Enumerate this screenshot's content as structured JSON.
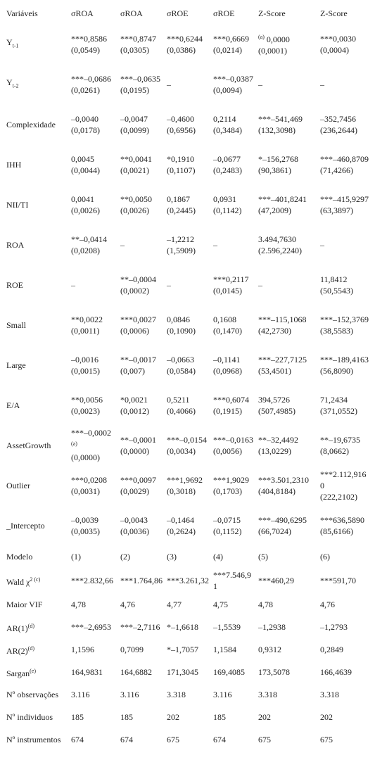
{
  "table": {
    "header": [
      "Variáveis",
      "σROA",
      "σROA",
      "σROE",
      "σROE",
      "Z-Score",
      "Z-Score"
    ],
    "rows": [
      {
        "label": {
          "text": "Y",
          "sub": "t-1"
        },
        "cells": [
          {
            "lines": [
              "***0,8586",
              "(0,0549)"
            ]
          },
          {
            "lines": [
              "***0,8747",
              "(0,0305)"
            ]
          },
          {
            "lines": [
              "***0,6244",
              "(0,0386)"
            ]
          },
          {
            "lines": [
              "***0,6669",
              "(0,0214)"
            ]
          },
          {
            "pre": "(a)",
            "lines": [
              "0,0000",
              "(0,0001)"
            ]
          },
          {
            "lines": [
              "***0,0030",
              "(0,0004)"
            ]
          }
        ]
      },
      {
        "label": {
          "text": "Y",
          "sub": "t-2"
        },
        "cells": [
          {
            "lines": [
              "***–0,0686",
              "(0,0261)"
            ]
          },
          {
            "lines": [
              "***–0,0635",
              "(0,0195)"
            ]
          },
          {
            "lines": [
              "–"
            ]
          },
          {
            "lines": [
              "***–0,0387",
              "(0,0094)"
            ]
          },
          {
            "lines": [
              "–"
            ]
          },
          {
            "lines": [
              "–"
            ]
          }
        ]
      },
      {
        "label": {
          "text": "Complexidade"
        },
        "cells": [
          {
            "lines": [
              "–0,0040",
              "(0,0178)"
            ]
          },
          {
            "lines": [
              "–0,0047",
              "(0,0099)"
            ]
          },
          {
            "lines": [
              "–0,4600",
              "(0,6956)"
            ]
          },
          {
            "lines": [
              "0,2114",
              "(0,3484)"
            ]
          },
          {
            "lines": [
              "***–541,469",
              "(132,3098)"
            ]
          },
          {
            "lines": [
              "–352,7456",
              "(236,2644)"
            ]
          }
        ]
      },
      {
        "label": {
          "text": "IHH"
        },
        "cells": [
          {
            "lines": [
              "0,0045",
              "(0,0044)"
            ]
          },
          {
            "lines": [
              "**0,0041",
              "(0,0021)"
            ]
          },
          {
            "lines": [
              "*0,1910",
              "(0,1107)"
            ]
          },
          {
            "lines": [
              "–0,0677",
              "(0,2483)"
            ]
          },
          {
            "lines": [
              "*–156,2768",
              "(90,3861)"
            ]
          },
          {
            "lines": [
              "***–460,8709",
              "(71,4266)"
            ]
          }
        ]
      },
      {
        "label": {
          "text": "NII/TI"
        },
        "cells": [
          {
            "lines": [
              "0,0041",
              "(0,0026)"
            ]
          },
          {
            "lines": [
              "**0,0050",
              "(0,0026)"
            ]
          },
          {
            "lines": [
              "0,1867",
              "(0,2445)"
            ]
          },
          {
            "lines": [
              "0,0931",
              "(0,1142)"
            ]
          },
          {
            "lines": [
              "***–401,8241",
              "(47,2009)"
            ]
          },
          {
            "lines": [
              "***–415,9297",
              "(63,3897)"
            ]
          }
        ]
      },
      {
        "label": {
          "text": "ROA"
        },
        "cells": [
          {
            "lines": [
              "**–0,0414",
              "(0,0208)"
            ]
          },
          {
            "lines": [
              "–"
            ]
          },
          {
            "lines": [
              "–1,2212",
              "(1,5909)"
            ]
          },
          {
            "lines": [
              "–"
            ]
          },
          {
            "lines": [
              "3.494,7630",
              "(2.596,2240)"
            ]
          },
          {
            "lines": [
              "–"
            ]
          }
        ]
      },
      {
        "label": {
          "text": "ROE"
        },
        "cells": [
          {
            "lines": [
              "–"
            ]
          },
          {
            "lines": [
              "**–0,0004",
              "(0,0002)"
            ]
          },
          {
            "lines": [
              "–"
            ]
          },
          {
            "lines": [
              "***0,2117",
              "(0,0145)"
            ]
          },
          {
            "lines": [
              "–"
            ]
          },
          {
            "lines": [
              "11,8412",
              "(50,5543)"
            ]
          }
        ]
      },
      {
        "label": {
          "text": "Small"
        },
        "cells": [
          {
            "lines": [
              "**0,0022",
              "(0,0011)"
            ]
          },
          {
            "lines": [
              "***0,0027",
              "(0,0006)"
            ]
          },
          {
            "lines": [
              "0,0846",
              "(0,1090)"
            ]
          },
          {
            "lines": [
              "0,1608",
              "(0,1470)"
            ]
          },
          {
            "lines": [
              "***–115,1068",
              "(42,2730)"
            ]
          },
          {
            "lines": [
              "***–152,3769",
              "(38,5583)"
            ]
          }
        ]
      },
      {
        "label": {
          "text": "Large"
        },
        "cells": [
          {
            "lines": [
              "–0,0016",
              "(0,0015)"
            ]
          },
          {
            "lines": [
              "**–0,0017",
              "(0,007)"
            ]
          },
          {
            "lines": [
              "–0,0663",
              "(0,0584)"
            ]
          },
          {
            "lines": [
              "–0,1141",
              "(0,0968)"
            ]
          },
          {
            "lines": [
              "***–227,7125",
              "(53,4501)"
            ]
          },
          {
            "lines": [
              "***–189,4163",
              "(56,8090)"
            ]
          }
        ]
      },
      {
        "label": {
          "text": "E/A"
        },
        "cells": [
          {
            "lines": [
              "**0,0056",
              "(0,0023)"
            ]
          },
          {
            "lines": [
              "*0,0021",
              "(0,0012)"
            ]
          },
          {
            "lines": [
              "0,5211",
              "(0,4066)"
            ]
          },
          {
            "lines": [
              "***0,6074",
              "(0,1915)"
            ]
          },
          {
            "lines": [
              "394,5726",
              "(507,4985)"
            ]
          },
          {
            "lines": [
              "71,2434",
              "(371,0552)"
            ]
          }
        ]
      },
      {
        "label": {
          "text": "AssetGrowth"
        },
        "cells": [
          {
            "lines": [
              "***–0,0002",
              "(0,0000)"
            ],
            "post": "(a)"
          },
          {
            "lines": [
              "**–0,0001",
              "(0,0000)"
            ]
          },
          {
            "lines": [
              "***–0,0154",
              "(0,0034)"
            ]
          },
          {
            "lines": [
              "***–0,0163",
              "(0,0056)"
            ]
          },
          {
            "lines": [
              "**–32,4492",
              "(13,0229)"
            ]
          },
          {
            "lines": [
              "**–19,6735",
              "(8,0662)"
            ]
          }
        ]
      },
      {
        "label": {
          "text": "Outlier"
        },
        "cells": [
          {
            "lines": [
              "***0,0208",
              "(0,0031)"
            ]
          },
          {
            "lines": [
              "***0,0097",
              "(0,0029)"
            ]
          },
          {
            "lines": [
              "***1,9692",
              "(0,3018)"
            ]
          },
          {
            "lines": [
              "***1,9029",
              "(0,1703)"
            ]
          },
          {
            "lines": [
              "***3.501,2310",
              "(404,8184)"
            ]
          },
          {
            "lines": [
              "***2.112,9160",
              "(222,2102)"
            ]
          }
        ]
      },
      {
        "label": {
          "text": "_Intercepto"
        },
        "cells": [
          {
            "lines": [
              "–0,0039",
              "(0,0035)"
            ]
          },
          {
            "lines": [
              "–0,0043",
              "(0,0036)"
            ]
          },
          {
            "lines": [
              "–0,1464",
              "(0,2624)"
            ]
          },
          {
            "lines": [
              "–0,0715",
              "(0,1152)"
            ]
          },
          {
            "lines": [
              "***–490,6295",
              "(66,7024)"
            ]
          },
          {
            "lines": [
              "***636,5890",
              "(85,6166)"
            ]
          }
        ]
      },
      {
        "label": {
          "text": "Modelo"
        },
        "cells": [
          {
            "lines": [
              "(1)"
            ]
          },
          {
            "lines": [
              "(2)"
            ]
          },
          {
            "lines": [
              "(3)"
            ]
          },
          {
            "lines": [
              "(4)"
            ]
          },
          {
            "lines": [
              "(5)"
            ]
          },
          {
            "lines": [
              "(6)"
            ]
          }
        ]
      },
      {
        "label": {
          "text": "Wald χ",
          "sup": "2 (c)"
        },
        "cells": [
          {
            "lines": [
              "***2.832,66"
            ]
          },
          {
            "lines": [
              "***1.764,86"
            ]
          },
          {
            "lines": [
              "***3.261,32"
            ]
          },
          {
            "lines": [
              "***7.546,91"
            ]
          },
          {
            "lines": [
              "***460,29"
            ]
          },
          {
            "lines": [
              "***591,70"
            ]
          }
        ]
      },
      {
        "label": {
          "text": "Maior VIF"
        },
        "cells": [
          {
            "lines": [
              "4,78"
            ]
          },
          {
            "lines": [
              "4,76"
            ]
          },
          {
            "lines": [
              "4,77"
            ]
          },
          {
            "lines": [
              "4,75"
            ]
          },
          {
            "lines": [
              "4,78"
            ]
          },
          {
            "lines": [
              "4,76"
            ]
          }
        ]
      },
      {
        "label": {
          "text": "AR(1)",
          "sup": "(d)"
        },
        "cells": [
          {
            "lines": [
              "***–2,6953"
            ]
          },
          {
            "lines": [
              "***–2,7116"
            ]
          },
          {
            "lines": [
              "*–1,6618"
            ]
          },
          {
            "lines": [
              "–1,5539"
            ]
          },
          {
            "lines": [
              "–1,2938"
            ]
          },
          {
            "lines": [
              "–1,2793"
            ]
          }
        ]
      },
      {
        "label": {
          "text": "AR(2)",
          "sup": "(d)"
        },
        "cells": [
          {
            "lines": [
              "1,1596"
            ]
          },
          {
            "lines": [
              "0,7099"
            ]
          },
          {
            "lines": [
              "*–1,7057"
            ]
          },
          {
            "lines": [
              "1,1584"
            ]
          },
          {
            "lines": [
              "0,9312"
            ]
          },
          {
            "lines": [
              "0,2849"
            ]
          }
        ]
      },
      {
        "label": {
          "text": "Sargan",
          "sup": "(e)"
        },
        "cells": [
          {
            "lines": [
              "164,9831"
            ]
          },
          {
            "lines": [
              "164,6882"
            ]
          },
          {
            "lines": [
              "171,3045"
            ]
          },
          {
            "lines": [
              "169,4085"
            ]
          },
          {
            "lines": [
              "173,5078"
            ]
          },
          {
            "lines": [
              "166,4639"
            ]
          }
        ]
      },
      {
        "label": {
          "text": "Nº observações"
        },
        "cells": [
          {
            "lines": [
              "3.116"
            ]
          },
          {
            "lines": [
              "3.116"
            ]
          },
          {
            "lines": [
              "3.318"
            ]
          },
          {
            "lines": [
              "3.116"
            ]
          },
          {
            "lines": [
              "3.318"
            ]
          },
          {
            "lines": [
              "3.318"
            ]
          }
        ]
      },
      {
        "label": {
          "text": "Nº individuos"
        },
        "cells": [
          {
            "lines": [
              "185"
            ]
          },
          {
            "lines": [
              "185"
            ]
          },
          {
            "lines": [
              "202"
            ]
          },
          {
            "lines": [
              "185"
            ]
          },
          {
            "lines": [
              "202"
            ]
          },
          {
            "lines": [
              "202"
            ]
          }
        ]
      },
      {
        "label": {
          "text": "Nº instrumentos"
        },
        "cells": [
          {
            "lines": [
              "674"
            ]
          },
          {
            "lines": [
              "674"
            ]
          },
          {
            "lines": [
              "675"
            ]
          },
          {
            "lines": [
              "674"
            ]
          },
          {
            "lines": [
              "675"
            ]
          },
          {
            "lines": [
              "675"
            ]
          }
        ]
      }
    ]
  }
}
